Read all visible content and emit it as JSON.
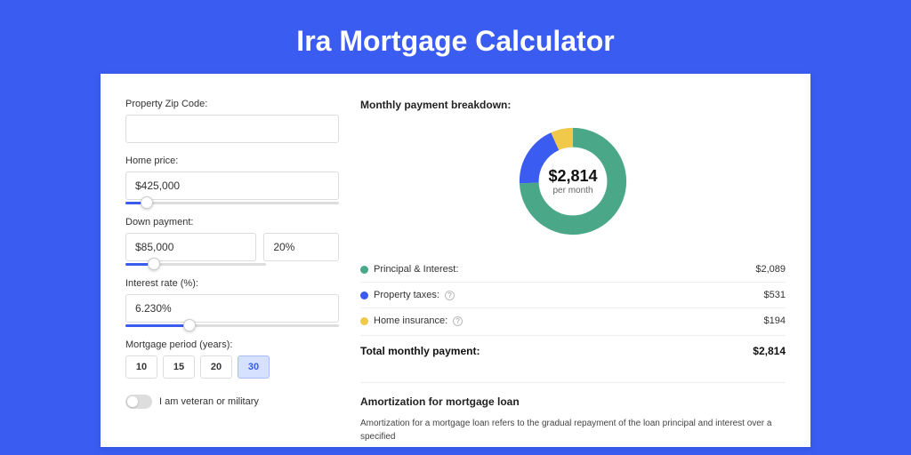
{
  "page": {
    "title": "Ira Mortgage Calculator",
    "background_color": "#3a5cf0"
  },
  "form": {
    "zip": {
      "label": "Property Zip Code:",
      "value": ""
    },
    "home_price": {
      "label": "Home price:",
      "value": "$425,000",
      "slider_percent": 10
    },
    "down_payment": {
      "label": "Down payment:",
      "amount": "$85,000",
      "percent": "20%",
      "slider_percent": 20
    },
    "interest_rate": {
      "label": "Interest rate (%):",
      "value": "6.230%",
      "slider_percent": 30
    },
    "mortgage_period": {
      "label": "Mortgage period (years):",
      "options": [
        "10",
        "15",
        "20",
        "30"
      ],
      "selected": "30"
    },
    "veteran": {
      "label": "I am veteran or military",
      "checked": false
    }
  },
  "breakdown": {
    "title": "Monthly payment breakdown:",
    "donut": {
      "center_value": "$2,814",
      "center_label": "per month",
      "segments": [
        {
          "label": "Principal & Interest:",
          "value": "$2,089",
          "amount": 2089,
          "color": "#4aa889"
        },
        {
          "label": "Property taxes:",
          "value": "$531",
          "amount": 531,
          "color": "#3a5cf0",
          "help": true
        },
        {
          "label": "Home insurance:",
          "value": "$194",
          "amount": 194,
          "color": "#f0c84a",
          "help": true
        }
      ]
    },
    "total": {
      "label": "Total monthly payment:",
      "value": "$2,814"
    }
  },
  "amortization": {
    "title": "Amortization for mortgage loan",
    "text": "Amortization for a mortgage loan refers to the gradual repayment of the loan principal and interest over a specified"
  }
}
